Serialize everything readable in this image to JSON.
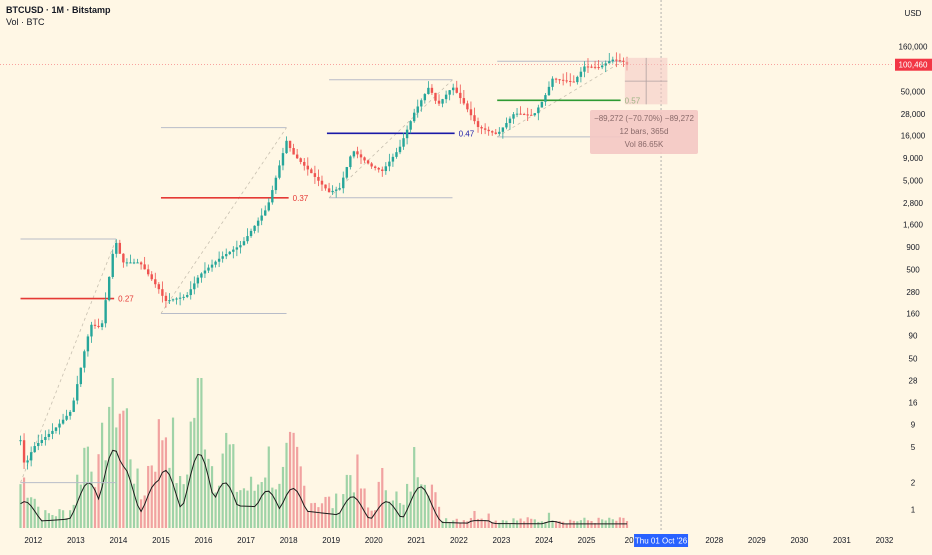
{
  "legend": {
    "symbol_line": "BTCUSD · 1M · Bitstamp",
    "volume_line": "Vol · BTC"
  },
  "colors": {
    "background": "#fff7e5",
    "up": "#26a69a",
    "down": "#ef5350",
    "vol_up": "#9fd3a7",
    "vol_down": "#f1a2a0",
    "vol_ma": "#1c1c1c",
    "fib_box": "#b8bcc8",
    "measure_fill": "#f4c7c3",
    "last_price": "#f23645",
    "date_highlight": "#2962ff"
  },
  "price_axis": {
    "currency_label": "USD",
    "scale": "log",
    "tick_labels": [
      "160,000",
      "50,000",
      "28,000",
      "16,000",
      "9,000",
      "5,000",
      "2,800",
      "1,600",
      "900",
      "500",
      "280",
      "160",
      "90",
      "50",
      "28",
      "16",
      "9",
      "5",
      "2",
      "1"
    ],
    "tick_values": [
      160000,
      50000,
      28000,
      16000,
      9000,
      5000,
      2800,
      1600,
      900,
      500,
      280,
      160,
      90,
      50,
      28,
      16,
      9,
      5,
      2,
      1
    ],
    "last_price_label": "100,460",
    "last_price": 100460
  },
  "time_axis": {
    "year_labels": [
      "2012",
      "2013",
      "2014",
      "2015",
      "2016",
      "2017",
      "2018",
      "2019",
      "2020",
      "2021",
      "2022",
      "2023",
      "2024",
      "2025",
      "20",
      "2028",
      "2029",
      "2030",
      "2031",
      "2032"
    ],
    "year_values": [
      2012,
      2013,
      2014,
      2015,
      2016,
      2017,
      2018,
      2019,
      2020,
      2021,
      2022,
      2023,
      2024,
      2025,
      2026,
      2028,
      2029,
      2030,
      2031,
      2032
    ],
    "highlight_label": "Thu 01 Oct '26",
    "highlight_value": 2026.75
  },
  "chart_data": {
    "type": "candlestick",
    "title": "BTCUSD · 1M · Bitstamp",
    "interval": "1M",
    "scale": "log",
    "ylim": [
      0.8,
      260000
    ],
    "xlim": [
      2011.5,
      2032.2
    ],
    "key_prices": [
      {
        "date": 2011.7,
        "price": 6
      },
      {
        "date": 2011.8,
        "price": 3
      },
      {
        "date": 2012.0,
        "price": 5
      },
      {
        "date": 2012.5,
        "price": 8
      },
      {
        "date": 2012.9,
        "price": 13
      },
      {
        "date": 2013.2,
        "price": 60
      },
      {
        "date": 2013.35,
        "price": 120
      },
      {
        "date": 2013.6,
        "price": 110
      },
      {
        "date": 2013.92,
        "price": 1100
      },
      {
        "date": 2014.1,
        "price": 600
      },
      {
        "date": 2014.5,
        "price": 600
      },
      {
        "date": 2014.95,
        "price": 300
      },
      {
        "date": 2015.1,
        "price": 220
      },
      {
        "date": 2015.6,
        "price": 250
      },
      {
        "date": 2015.9,
        "price": 430
      },
      {
        "date": 2016.4,
        "price": 680
      },
      {
        "date": 2016.9,
        "price": 960
      },
      {
        "date": 2017.5,
        "price": 2500
      },
      {
        "date": 2017.95,
        "price": 14000
      },
      {
        "date": 2018.1,
        "price": 10000
      },
      {
        "date": 2018.5,
        "price": 6300
      },
      {
        "date": 2018.95,
        "price": 3700
      },
      {
        "date": 2019.2,
        "price": 4100
      },
      {
        "date": 2019.5,
        "price": 11000
      },
      {
        "date": 2019.95,
        "price": 7200
      },
      {
        "date": 2020.2,
        "price": 6400
      },
      {
        "date": 2020.6,
        "price": 11500
      },
      {
        "date": 2020.95,
        "price": 29000
      },
      {
        "date": 2021.3,
        "price": 57000
      },
      {
        "date": 2021.5,
        "price": 35000
      },
      {
        "date": 2021.85,
        "price": 57000
      },
      {
        "date": 2022.1,
        "price": 38000
      },
      {
        "date": 2022.45,
        "price": 20000
      },
      {
        "date": 2022.9,
        "price": 16500
      },
      {
        "date": 2023.3,
        "price": 28500
      },
      {
        "date": 2023.75,
        "price": 27000
      },
      {
        "date": 2024.0,
        "price": 42000
      },
      {
        "date": 2024.2,
        "price": 70000
      },
      {
        "date": 2024.7,
        "price": 64000
      },
      {
        "date": 2024.95,
        "price": 96000
      },
      {
        "date": 2025.3,
        "price": 94000
      },
      {
        "date": 2025.6,
        "price": 115000
      },
      {
        "date": 2025.85,
        "price": 110000
      },
      {
        "date": 2025.95,
        "price": 100460
      }
    ],
    "fib_levels": [
      {
        "label": "0.27",
        "price": 235,
        "x_start": 2011.7,
        "x_end": 2013.9,
        "color": "#e53935"
      },
      {
        "label": "0.37",
        "price": 3200,
        "x_start": 2015.0,
        "x_end": 2018.0,
        "color": "#e53935"
      },
      {
        "label": "0.47",
        "price": 17000,
        "x_start": 2018.9,
        "x_end": 2021.9,
        "color": "#1a1aa8"
      },
      {
        "label": "0.57",
        "price": 40000,
        "x_start": 2022.9,
        "x_end": 2025.8,
        "color": "#2e9a33"
      }
    ],
    "fib_boxes": [
      {
        "x_start": 2011.7,
        "x_end": 2013.95,
        "low": 2,
        "high": 1100
      },
      {
        "x_start": 2015.0,
        "x_end": 2017.95,
        "low": 160,
        "high": 19700
      },
      {
        "x_start": 2018.95,
        "x_end": 2021.85,
        "low": 3200,
        "high": 68000
      },
      {
        "x_start": 2022.9,
        "x_end": 2025.85,
        "low": 15500,
        "high": 110000
      }
    ],
    "measure": {
      "x_start": 2025.9,
      "x_end": 2026.9,
      "top": 120000,
      "bottom": 36000,
      "lines": [
        "−89,272 (−70.70%) −89,272",
        "12 bars, 365d",
        "Vol 86.65K"
      ]
    },
    "volume": {
      "label": "Vol · BTC",
      "spikes": [
        {
          "date": 2011.8,
          "v": 0.32
        },
        {
          "date": 2013.3,
          "v": 0.55
        },
        {
          "date": 2013.9,
          "v": 0.95
        },
        {
          "date": 2014.1,
          "v": 0.75
        },
        {
          "date": 2014.9,
          "v": 0.55
        },
        {
          "date": 2015.1,
          "v": 0.7
        },
        {
          "date": 2015.9,
          "v": 0.9
        },
        {
          "date": 2016.5,
          "v": 0.55
        },
        {
          "date": 2017.5,
          "v": 0.45
        },
        {
          "date": 2018.1,
          "v": 0.48
        },
        {
          "date": 2019.5,
          "v": 0.38
        },
        {
          "date": 2020.3,
          "v": 0.32
        },
        {
          "date": 2021.1,
          "v": 0.5
        },
        {
          "date": 2022.5,
          "v": 0.12
        },
        {
          "date": 2024.2,
          "v": 0.08
        }
      ]
    }
  }
}
